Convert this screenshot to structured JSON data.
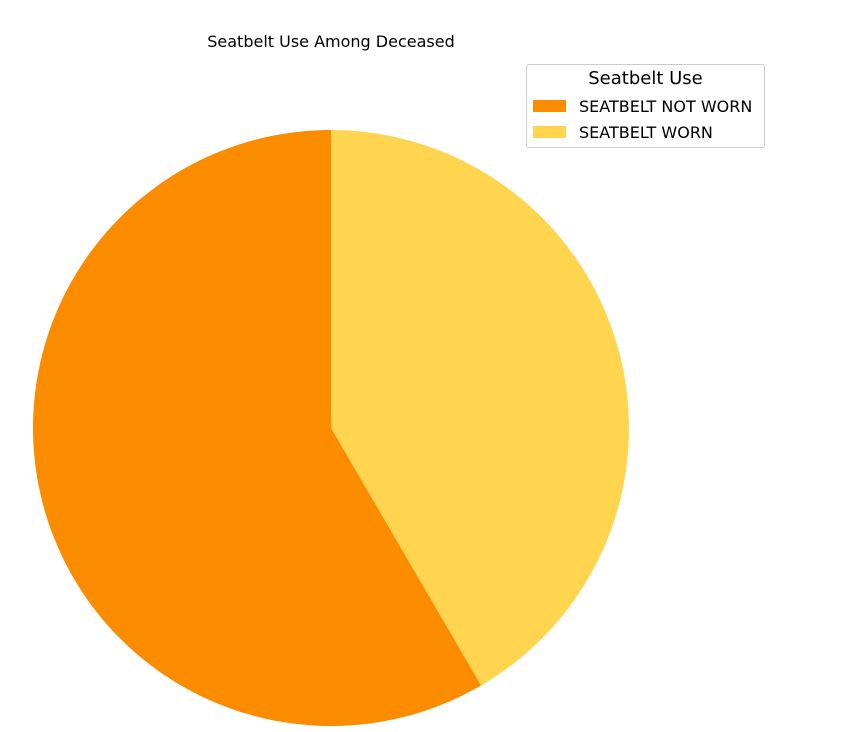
{
  "chart_data": {
    "type": "pie",
    "title": "Seatbelt Use Among Deceased",
    "legend_title": "Seatbelt Use",
    "legend_position": "top-right",
    "start_angle_deg": 90,
    "direction": "clockwise",
    "slices": [
      {
        "label": "SEATBELT WORN",
        "value": 41.6,
        "color": "#ffd44f"
      },
      {
        "label": "SEATBELT NOT WORN",
        "value": 58.4,
        "color": "#fb8c00"
      }
    ],
    "legend": [
      {
        "label": "SEATBELT NOT WORN",
        "color": "#fb8c00"
      },
      {
        "label": "SEATBELT WORN",
        "color": "#ffd44f"
      }
    ]
  }
}
